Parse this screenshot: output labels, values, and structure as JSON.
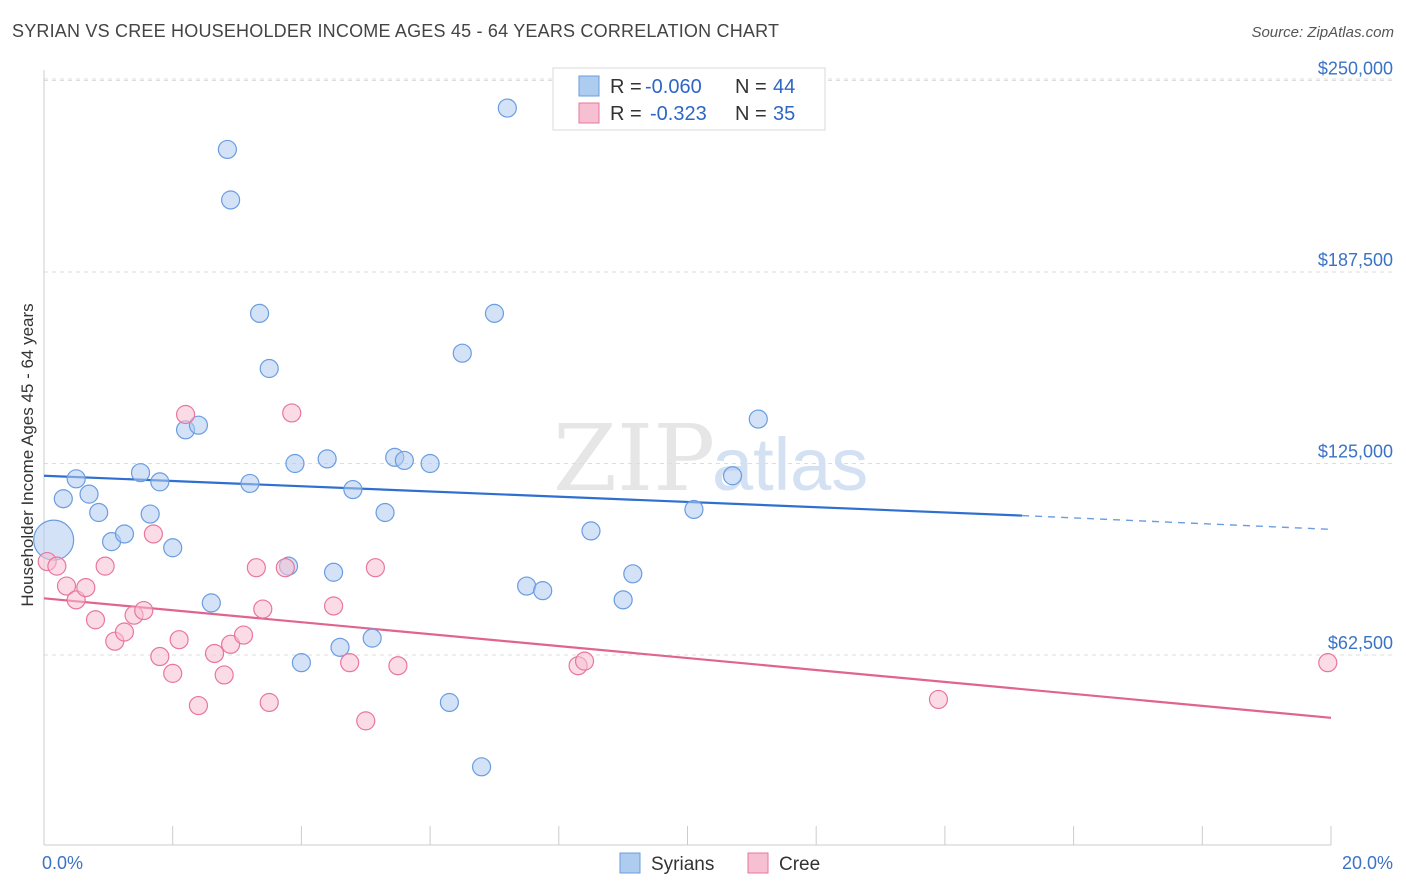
{
  "title": "SYRIAN VS CREE HOUSEHOLDER INCOME AGES 45 - 64 YEARS CORRELATION CHART",
  "source": "Source: ZipAtlas.com",
  "watermark": {
    "zip": "ZIP",
    "atlas": "atlas"
  },
  "chart_data": {
    "type": "scatter",
    "title": "SYRIAN VS CREE HOUSEHOLDER INCOME AGES 45 - 64 YEARS CORRELATION CHART",
    "xlabel": "",
    "ylabel": "Householder Income Ages 45 - 64 years",
    "xlim": [
      0,
      20
    ],
    "ylim": [
      0,
      255000
    ],
    "x_tick_labels": [
      {
        "value": 0,
        "label": "0.0%"
      },
      {
        "value": 20,
        "label": "20.0%"
      }
    ],
    "y_ticks": [
      {
        "value": 62500,
        "label": "$62,500"
      },
      {
        "value": 125000,
        "label": "$125,000"
      },
      {
        "value": 187500,
        "label": "$187,500"
      },
      {
        "value": 250000,
        "label": "$250,000"
      }
    ],
    "grid": "horizontal dashed",
    "legend_placement": "top-center and bottom",
    "stats_legend": [
      {
        "series": "Syrians",
        "r_label": "R =",
        "r": "-0.060",
        "n_label": "N =",
        "n": "44"
      },
      {
        "series": "Cree",
        "r_label": "R =",
        "r": "-0.323",
        "n_label": "N =",
        "n": "35"
      }
    ],
    "series": [
      {
        "name": "Syrians",
        "color": "#6a9de0",
        "fill": "#aecbf0",
        "trend": {
          "x0": 0,
          "y0": 121000,
          "x1": 15.2,
          "y1": 108000,
          "x_dash_end": 20,
          "y_dash_end": 103500
        },
        "points": [
          {
            "x": 0.15,
            "y": 100000,
            "big": true
          },
          {
            "x": 0.3,
            "y": 113500
          },
          {
            "x": 0.5,
            "y": 120000
          },
          {
            "x": 0.7,
            "y": 115000
          },
          {
            "x": 0.85,
            "y": 109000
          },
          {
            "x": 1.05,
            "y": 99500
          },
          {
            "x": 1.25,
            "y": 102000
          },
          {
            "x": 1.5,
            "y": 122000
          },
          {
            "x": 1.65,
            "y": 108500
          },
          {
            "x": 1.8,
            "y": 119000
          },
          {
            "x": 2.0,
            "y": 97500
          },
          {
            "x": 2.2,
            "y": 136000
          },
          {
            "x": 2.4,
            "y": 137500
          },
          {
            "x": 2.6,
            "y": 79500
          },
          {
            "x": 2.85,
            "y": 227500
          },
          {
            "x": 2.9,
            "y": 211000
          },
          {
            "x": 3.2,
            "y": 118500
          },
          {
            "x": 3.35,
            "y": 174000
          },
          {
            "x": 3.5,
            "y": 156000
          },
          {
            "x": 3.8,
            "y": 91500
          },
          {
            "x": 3.9,
            "y": 125000
          },
          {
            "x": 4.0,
            "y": 60000
          },
          {
            "x": 4.4,
            "y": 126500
          },
          {
            "x": 4.5,
            "y": 89500
          },
          {
            "x": 4.6,
            "y": 65000
          },
          {
            "x": 4.8,
            "y": 116500
          },
          {
            "x": 5.1,
            "y": 68000
          },
          {
            "x": 5.3,
            "y": 109000
          },
          {
            "x": 5.45,
            "y": 127000
          },
          {
            "x": 5.6,
            "y": 126000
          },
          {
            "x": 6.0,
            "y": 125000
          },
          {
            "x": 6.3,
            "y": 47000
          },
          {
            "x": 6.5,
            "y": 161000
          },
          {
            "x": 6.8,
            "y": 26000
          },
          {
            "x": 7.0,
            "y": 174000
          },
          {
            "x": 7.2,
            "y": 241000
          },
          {
            "x": 7.5,
            "y": 85000
          },
          {
            "x": 7.75,
            "y": 83500
          },
          {
            "x": 8.5,
            "y": 103000
          },
          {
            "x": 9.0,
            "y": 80500
          },
          {
            "x": 9.15,
            "y": 89000
          },
          {
            "x": 10.1,
            "y": 110000
          },
          {
            "x": 10.7,
            "y": 121000
          },
          {
            "x": 11.1,
            "y": 139500
          }
        ]
      },
      {
        "name": "Cree",
        "color": "#e8769e",
        "fill": "#f7bfd2",
        "trend": {
          "x0": 0,
          "y0": 81000,
          "x1": 20,
          "y1": 42000
        },
        "points": [
          {
            "x": 0.05,
            "y": 93000
          },
          {
            "x": 0.2,
            "y": 91500
          },
          {
            "x": 0.35,
            "y": 85000
          },
          {
            "x": 0.5,
            "y": 80500
          },
          {
            "x": 0.65,
            "y": 84500
          },
          {
            "x": 0.8,
            "y": 74000
          },
          {
            "x": 0.95,
            "y": 91500
          },
          {
            "x": 1.1,
            "y": 67000
          },
          {
            "x": 1.25,
            "y": 70000
          },
          {
            "x": 1.4,
            "y": 75500
          },
          {
            "x": 1.55,
            "y": 77000
          },
          {
            "x": 1.7,
            "y": 102000
          },
          {
            "x": 1.8,
            "y": 62000
          },
          {
            "x": 2.0,
            "y": 56500
          },
          {
            "x": 2.1,
            "y": 67500
          },
          {
            "x": 2.2,
            "y": 141000
          },
          {
            "x": 2.4,
            "y": 46000
          },
          {
            "x": 2.65,
            "y": 63000
          },
          {
            "x": 2.8,
            "y": 56000
          },
          {
            "x": 2.9,
            "y": 66000
          },
          {
            "x": 3.1,
            "y": 69000
          },
          {
            "x": 3.3,
            "y": 91000
          },
          {
            "x": 3.4,
            "y": 77500
          },
          {
            "x": 3.5,
            "y": 47000
          },
          {
            "x": 3.75,
            "y": 91000
          },
          {
            "x": 3.85,
            "y": 141500
          },
          {
            "x": 4.5,
            "y": 78500
          },
          {
            "x": 4.75,
            "y": 60000
          },
          {
            "x": 5.0,
            "y": 41000
          },
          {
            "x": 5.15,
            "y": 91000
          },
          {
            "x": 5.5,
            "y": 59000
          },
          {
            "x": 8.3,
            "y": 59000
          },
          {
            "x": 8.4,
            "y": 60500
          },
          {
            "x": 13.9,
            "y": 48000
          },
          {
            "x": 19.95,
            "y": 60000
          }
        ]
      }
    ]
  }
}
